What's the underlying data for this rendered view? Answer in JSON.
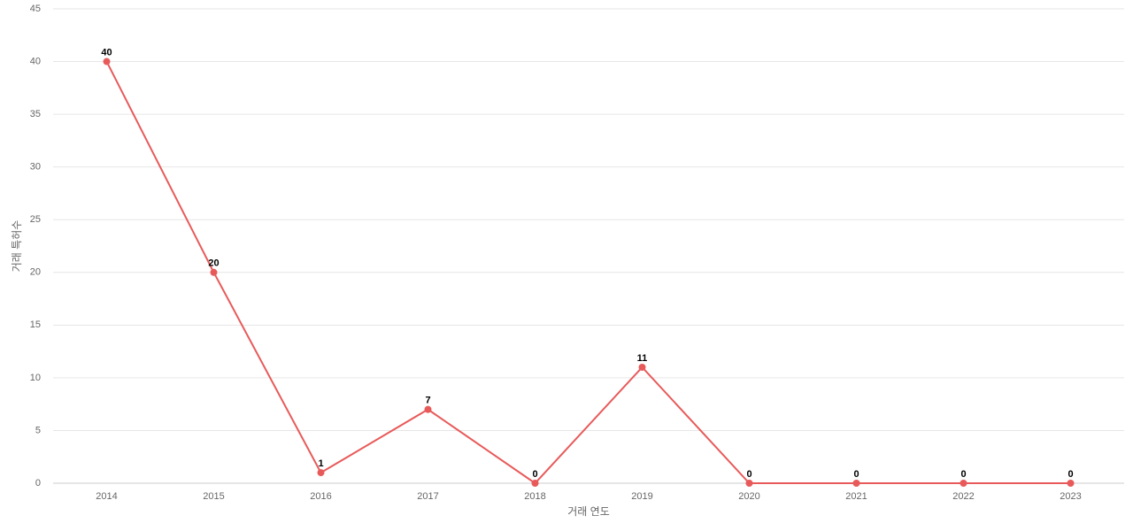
{
  "chart_data": {
    "type": "line",
    "x_label": "거래 연도",
    "y_label": "거래 특허수",
    "categories": [
      "2014",
      "2015",
      "2016",
      "2017",
      "2018",
      "2019",
      "2020",
      "2021",
      "2022",
      "2023"
    ],
    "series": [
      {
        "name": "거래 특허수",
        "color": "#e85a5a",
        "values": [
          40,
          20,
          1,
          7,
          0,
          11,
          0,
          0,
          0,
          0
        ]
      }
    ],
    "ylim": [
      0,
      45
    ],
    "yticks": [
      0,
      5,
      10,
      15,
      20,
      25,
      30,
      35,
      40,
      45
    ],
    "grid": true
  }
}
